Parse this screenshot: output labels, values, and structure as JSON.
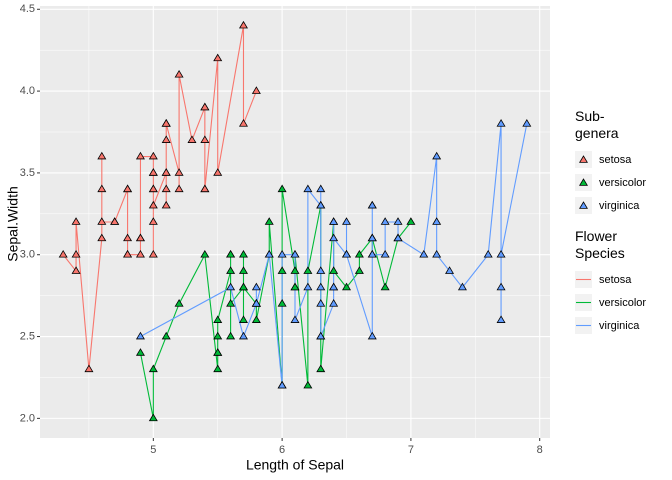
{
  "chart_data": {
    "type": "line",
    "markers": "triangle",
    "x_label": "Length of Sepal",
    "y_label": "Sepal.Width",
    "point_legend_title": "Sub-genera",
    "line_legend_title": "Flower Species",
    "xlim": [
      4.12,
      8.08
    ],
    "ylim": [
      1.88,
      4.52
    ],
    "xticks": [
      5,
      6,
      7,
      8
    ],
    "yticks": [
      {
        "value": 2,
        "label": "2.0"
      },
      {
        "value": 2.5,
        "label": "2.5"
      },
      {
        "value": 3,
        "label": "3.0"
      },
      {
        "value": 3.5,
        "label": "3.5"
      },
      {
        "value": 4,
        "label": "4.0"
      },
      {
        "value": 4.5,
        "label": "4.5"
      }
    ],
    "grid": true,
    "series": [
      {
        "name": "setosa",
        "color": "#F8766D",
        "x": [
          4.3,
          4.4,
          4.4,
          4.4,
          4.5,
          4.6,
          4.6,
          4.6,
          4.6,
          4.7,
          4.7,
          4.8,
          4.8,
          4.8,
          4.8,
          4.8,
          4.9,
          4.9,
          4.9,
          4.9,
          5.0,
          5.0,
          5.0,
          5.0,
          5.0,
          5.0,
          5.0,
          5.0,
          5.1,
          5.1,
          5.1,
          5.1,
          5.1,
          5.1,
          5.1,
          5.1,
          5.2,
          5.2,
          5.2,
          5.3,
          5.4,
          5.4,
          5.4,
          5.4,
          5.4,
          5.5,
          5.5,
          5.7,
          5.7,
          5.8
        ],
        "values": [
          3.0,
          2.9,
          3.0,
          3.2,
          2.3,
          3.1,
          3.4,
          3.6,
          3.2,
          3.2,
          3.2,
          3.4,
          3.0,
          3.4,
          3.1,
          3.0,
          3.0,
          3.1,
          3.1,
          3.6,
          3.6,
          3.4,
          3.0,
          3.4,
          3.2,
          3.5,
          3.5,
          3.3,
          3.5,
          3.5,
          3.8,
          3.7,
          3.3,
          3.4,
          3.8,
          3.8,
          3.5,
          3.4,
          4.1,
          3.7,
          3.9,
          3.7,
          3.9,
          3.4,
          3.4,
          4.2,
          3.5,
          4.4,
          3.8,
          4.0
        ]
      },
      {
        "name": "versicolor",
        "color": "#00BA38",
        "x": [
          4.9,
          5.0,
          5.0,
          5.1,
          5.2,
          5.4,
          5.5,
          5.5,
          5.5,
          5.5,
          5.5,
          5.6,
          5.6,
          5.6,
          5.6,
          5.6,
          5.7,
          5.7,
          5.7,
          5.7,
          5.7,
          5.8,
          5.8,
          5.8,
          5.9,
          5.9,
          6.0,
          6.0,
          6.0,
          6.0,
          6.1,
          6.1,
          6.1,
          6.1,
          6.2,
          6.2,
          6.3,
          6.3,
          6.3,
          6.4,
          6.4,
          6.5,
          6.6,
          6.6,
          6.7,
          6.7,
          6.7,
          6.8,
          6.9,
          7.0
        ],
        "values": [
          2.4,
          2.0,
          2.3,
          2.5,
          2.7,
          3.0,
          2.3,
          2.4,
          2.4,
          2.5,
          2.6,
          2.9,
          3.0,
          2.5,
          3.0,
          2.7,
          2.8,
          2.6,
          3.0,
          2.9,
          2.8,
          2.7,
          2.7,
          2.6,
          3.0,
          3.2,
          2.2,
          2.9,
          2.7,
          3.4,
          2.9,
          2.8,
          2.8,
          3.0,
          2.2,
          2.9,
          3.3,
          2.5,
          2.3,
          3.2,
          2.9,
          2.8,
          2.9,
          3.0,
          3.1,
          3.0,
          3.1,
          2.8,
          3.1,
          3.2
        ]
      },
      {
        "name": "virginica",
        "color": "#619CFF",
        "x": [
          4.9,
          5.6,
          5.7,
          5.8,
          5.8,
          5.8,
          5.9,
          6.0,
          6.0,
          6.1,
          6.1,
          6.2,
          6.2,
          6.3,
          6.3,
          6.3,
          6.3,
          6.3,
          6.3,
          6.4,
          6.4,
          6.4,
          6.4,
          6.4,
          6.5,
          6.5,
          6.5,
          6.5,
          6.7,
          6.7,
          6.7,
          6.7,
          6.7,
          6.8,
          6.8,
          6.9,
          6.9,
          6.9,
          7.1,
          7.2,
          7.2,
          7.2,
          7.3,
          7.4,
          7.6,
          7.7,
          7.7,
          7.7,
          7.7,
          7.9
        ],
        "values": [
          2.5,
          2.8,
          2.5,
          2.7,
          2.8,
          2.7,
          3.0,
          2.2,
          3.0,
          3.0,
          2.6,
          2.8,
          3.4,
          3.3,
          2.9,
          2.7,
          2.8,
          3.4,
          2.5,
          2.7,
          3.2,
          2.8,
          2.8,
          3.1,
          3.0,
          3.2,
          3.0,
          3.0,
          2.5,
          3.3,
          3.1,
          3.3,
          3.0,
          3.0,
          3.2,
          3.2,
          3.1,
          3.1,
          3.0,
          3.6,
          3.2,
          3.0,
          2.9,
          2.8,
          3.0,
          3.8,
          2.6,
          2.8,
          3.0,
          3.8
        ]
      }
    ]
  }
}
